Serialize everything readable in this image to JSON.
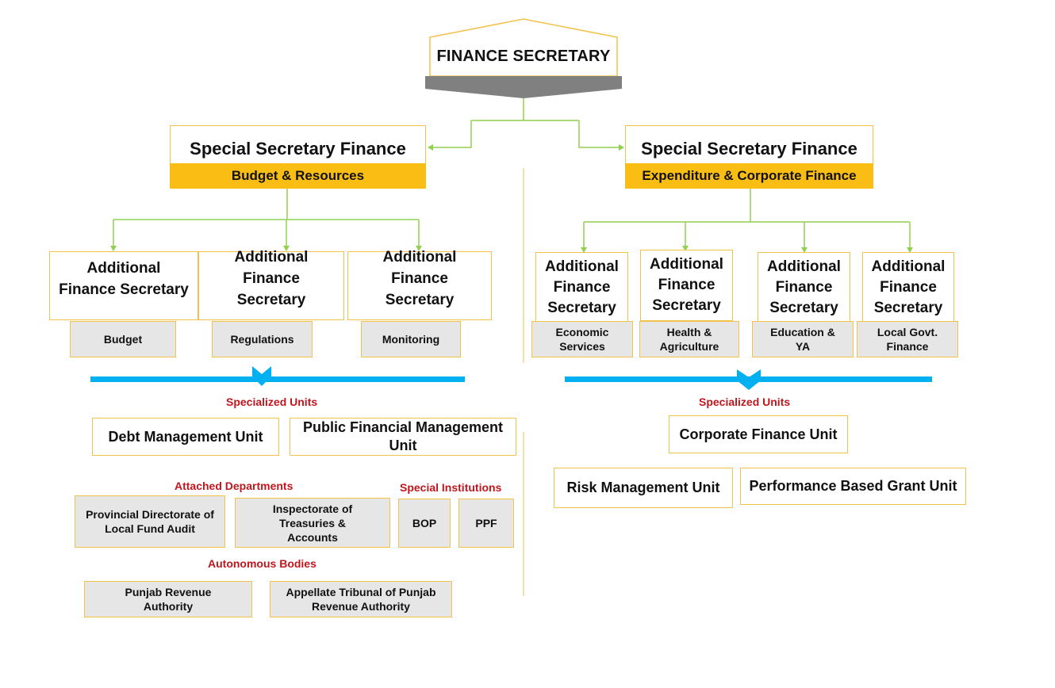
{
  "head": {
    "title": "FINANCE SECRETARY"
  },
  "left": {
    "title": "Special Secretary Finance",
    "subtitle": "Budget & Resources",
    "afs": [
      {
        "title": "Additional Finance Secretary",
        "unit": "Budget"
      },
      {
        "title": "Additional Finance Secretary",
        "unit": "Regulations"
      },
      {
        "title": "Additional Finance Secretary",
        "unit": "Monitoring"
      }
    ],
    "specialized_label": "Specialized Units",
    "specialized_units": [
      "Debt Management Unit",
      "Public Financial Management Unit"
    ],
    "attached_label": "Attached Departments",
    "attached": [
      "Provincial Directorate of Local Fund Audit",
      "Inspectorate of Treasuries & Accounts"
    ],
    "institutions_label": "Special Institutions",
    "institutions": [
      "BOP",
      "PPF"
    ],
    "autonomous_label": "Autonomous Bodies",
    "autonomous": [
      "Punjab Revenue Authority",
      "Appellate Tribunal of Punjab Revenue Authority"
    ]
  },
  "right": {
    "title": "Special Secretary Finance",
    "subtitle": "Expenditure & Corporate Finance",
    "afs": [
      {
        "title": "Additional Finance Secretary",
        "unit": "Economic Services"
      },
      {
        "title": "Additional Finance Secretary",
        "unit": "Health & Agriculture"
      },
      {
        "title": "Additional Finance Secretary",
        "unit": "Education & YA"
      },
      {
        "title": "Additional Finance Secretary",
        "unit": "Local Govt. Finance"
      }
    ],
    "specialized_label": "Specialized Units",
    "specialized_units": [
      "Corporate Finance Unit",
      "Risk Management Unit",
      "Performance Based Grant Unit"
    ]
  },
  "colors": {
    "accent": "#f9bd13",
    "border": "#f2c24a",
    "connector": "#92d050",
    "blue": "#00b0f0",
    "red": "#c0161d",
    "gray": "#e6e6e6"
  }
}
